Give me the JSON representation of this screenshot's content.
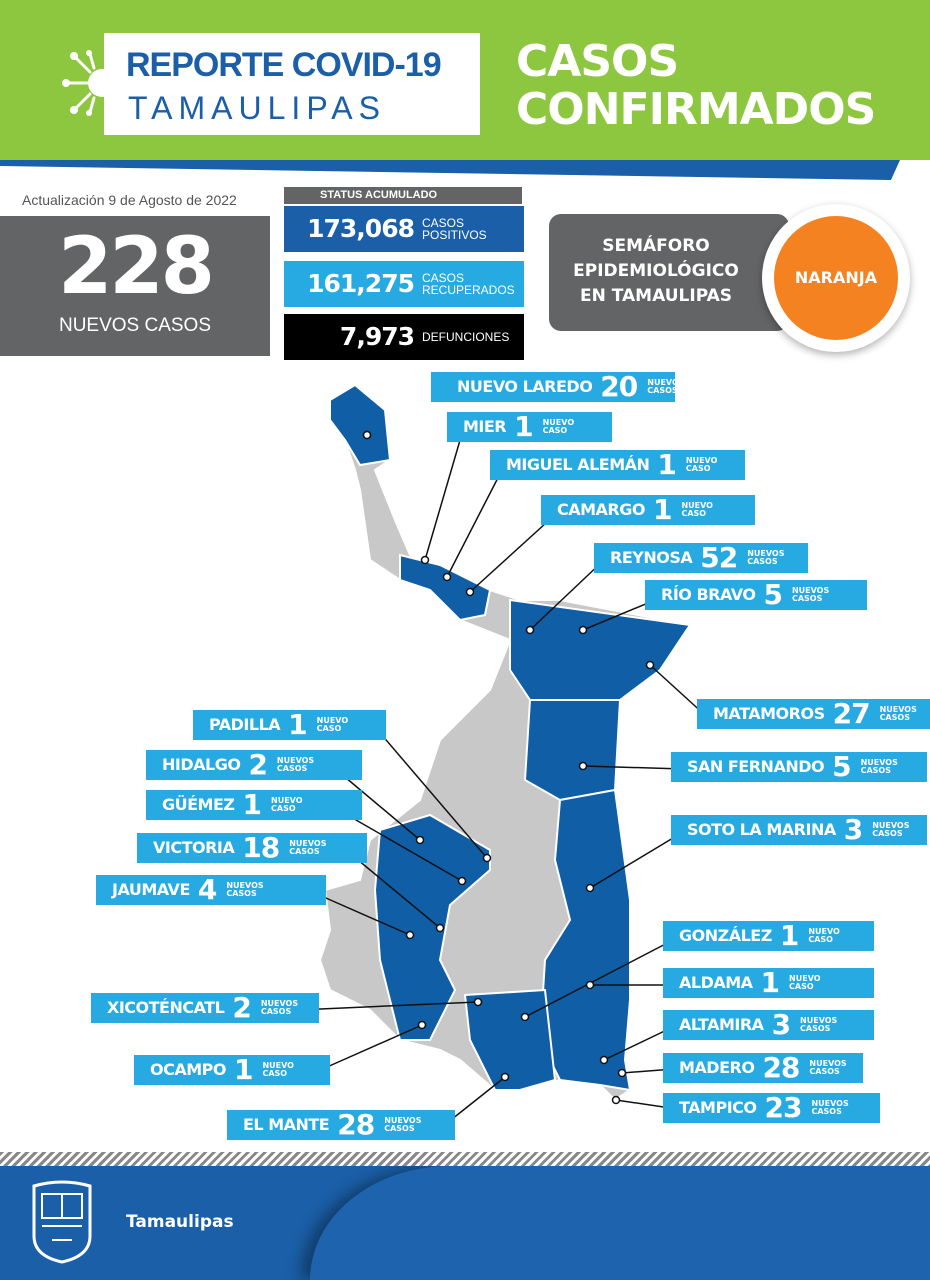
{
  "header": {
    "report_line1": "REPORTE COVID-19",
    "report_line2": "TAMAULIPAS",
    "title_line1": "CASOS",
    "title_line2": "CONFIRMADOS"
  },
  "update": "Actualización  9 de Agosto de 2022",
  "new_cases": {
    "value": "228",
    "label": "NUEVOS CASOS"
  },
  "status": {
    "heading": "STATUS ACUMULADO",
    "positive": {
      "value": "173,068",
      "label1": "CASOS",
      "label2": "POSITIVOS",
      "color": "#1a5fa8"
    },
    "recovered": {
      "value": "161,275",
      "label1": "CASOS",
      "label2": "RECUPERADOS",
      "color": "#27aae1"
    },
    "deaths": {
      "value": "7,973",
      "label1": "DEFUNCIONES",
      "label2": "",
      "color": "#000000"
    }
  },
  "semaforo": {
    "line1": "SEMÁFORO",
    "line2": "EPIDEMIOLÓGICO",
    "line3": "EN TAMAULIPAS",
    "level": "NARANJA",
    "level_color": "#f58220"
  },
  "colors": {
    "green": "#8dc63f",
    "blue": "#1a5fa8",
    "light_blue": "#27aae1",
    "gray_map": "#c8c8c8",
    "affected_map": "#0f5ea6"
  },
  "municipalities": [
    {
      "name": "NUEVO LAREDO",
      "count": "20",
      "unit": "NUEVOS CASOS"
    },
    {
      "name": "MIER",
      "count": "1",
      "unit": "NUEVO CASO"
    },
    {
      "name": "MIGUEL ALEMÁN",
      "count": "1",
      "unit": "NUEVO CASO"
    },
    {
      "name": "CAMARGO",
      "count": "1",
      "unit": "NUEVO CASO"
    },
    {
      "name": "REYNOSA",
      "count": "52",
      "unit": "NUEVOS CASOS"
    },
    {
      "name": "RÍO BRAVO",
      "count": "5",
      "unit": "NUEVOS CASOS"
    },
    {
      "name": "MATAMOROS",
      "count": "27",
      "unit": "NUEVOS CASOS"
    },
    {
      "name": "SAN FERNANDO",
      "count": "5",
      "unit": "NUEVOS CASOS"
    },
    {
      "name": "SOTO LA MARINA",
      "count": "3",
      "unit": "NUEVOS CASOS"
    },
    {
      "name": "GONZÁLEZ",
      "count": "1",
      "unit": "NUEVO CASO"
    },
    {
      "name": "ALDAMA",
      "count": "1",
      "unit": "NUEVO CASO"
    },
    {
      "name": "ALTAMIRA",
      "count": "3",
      "unit": "NUEVOS CASOS"
    },
    {
      "name": "MADERO",
      "count": "28",
      "unit": "NUEVOS CASOS"
    },
    {
      "name": "TAMPICO",
      "count": "23",
      "unit": "NUEVOS CASOS"
    },
    {
      "name": "PADILLA",
      "count": "1",
      "unit": "NUEVO CASO"
    },
    {
      "name": "HIDALGO",
      "count": "2",
      "unit": "NUEVOS CASOS"
    },
    {
      "name": "GÜÉMEZ",
      "count": "1",
      "unit": "NUEVO CASO"
    },
    {
      "name": "VICTORIA",
      "count": "18",
      "unit": "NUEVOS CASOS"
    },
    {
      "name": "JAUMAVE",
      "count": "4",
      "unit": "NUEVOS CASOS"
    },
    {
      "name": "XICOTÉNCATL",
      "count": "2",
      "unit": "NUEVOS CASOS"
    },
    {
      "name": "OCAMPO",
      "count": "1",
      "unit": "NUEVO CASO"
    },
    {
      "name": "EL MANTE",
      "count": "28",
      "unit": "NUEVOS CASOS"
    }
  ],
  "footer": {
    "brand": "Tamaulipas"
  }
}
